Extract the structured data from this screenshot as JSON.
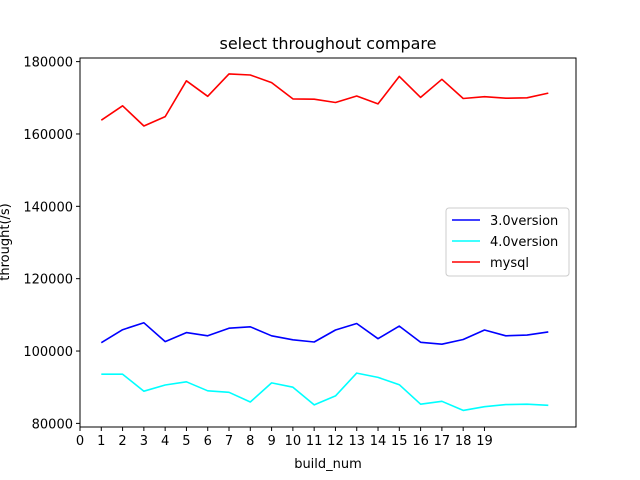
{
  "chart_data": {
    "type": "line",
    "title": "select throughout compare",
    "xlabel": "build_num",
    "ylabel": "throught(/s)",
    "x": [
      1,
      2,
      3,
      4,
      5,
      6,
      7,
      8,
      9,
      10,
      11,
      12,
      13,
      14,
      15,
      16,
      17,
      18,
      19,
      20,
      21,
      22
    ],
    "xlim": [
      0,
      23.3
    ],
    "ylim": [
      79000,
      181000
    ],
    "x_ticks": [
      "0",
      "1",
      "2",
      "3",
      "4",
      "5",
      "6",
      "7",
      "8",
      "9",
      "10",
      "11",
      "12",
      "13",
      "14",
      "15",
      "16",
      "17",
      "18",
      "19"
    ],
    "y_ticks": [
      "80000",
      "100000",
      "120000",
      "140000",
      "160000",
      "180000"
    ],
    "legend_position": "center-right",
    "grid": false,
    "series": [
      {
        "name": "3.0version",
        "color": "#0000ff",
        "values": [
          102300,
          105900,
          107800,
          102600,
          105100,
          104200,
          106300,
          106700,
          104200,
          103100,
          102500,
          105800,
          107600,
          103400,
          106900,
          102400,
          101900,
          103200,
          105800,
          104200,
          104400,
          105300
        ]
      },
      {
        "name": "4.0version",
        "color": "#00ffff",
        "values": [
          93600,
          93600,
          88900,
          90600,
          91500,
          89000,
          88600,
          85900,
          91200,
          90000,
          85100,
          87600,
          93900,
          92700,
          90700,
          85300,
          86100,
          83600,
          84600,
          85200,
          85300,
          85000
        ]
      },
      {
        "name": "mysql",
        "color": "#ff0000",
        "values": [
          163800,
          167800,
          162200,
          164800,
          174700,
          170400,
          176600,
          176300,
          174200,
          169700,
          169600,
          168700,
          170500,
          168300,
          175900,
          170100,
          175100,
          169800,
          170300,
          169900,
          170000,
          171300
        ]
      }
    ]
  }
}
